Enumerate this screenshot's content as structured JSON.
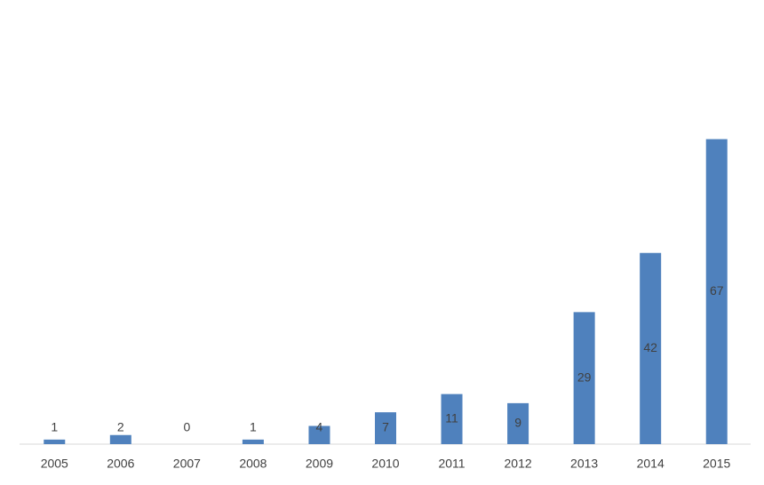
{
  "chart_data": {
    "type": "bar",
    "categories": [
      "2005",
      "2006",
      "2007",
      "2008",
      "2009",
      "2010",
      "2011",
      "2012",
      "2013",
      "2014",
      "2015"
    ],
    "values": [
      1,
      2,
      0,
      1,
      4,
      7,
      11,
      9,
      29,
      42,
      67
    ],
    "color": "#4f81bd",
    "ylim": [
      0,
      80
    ]
  }
}
